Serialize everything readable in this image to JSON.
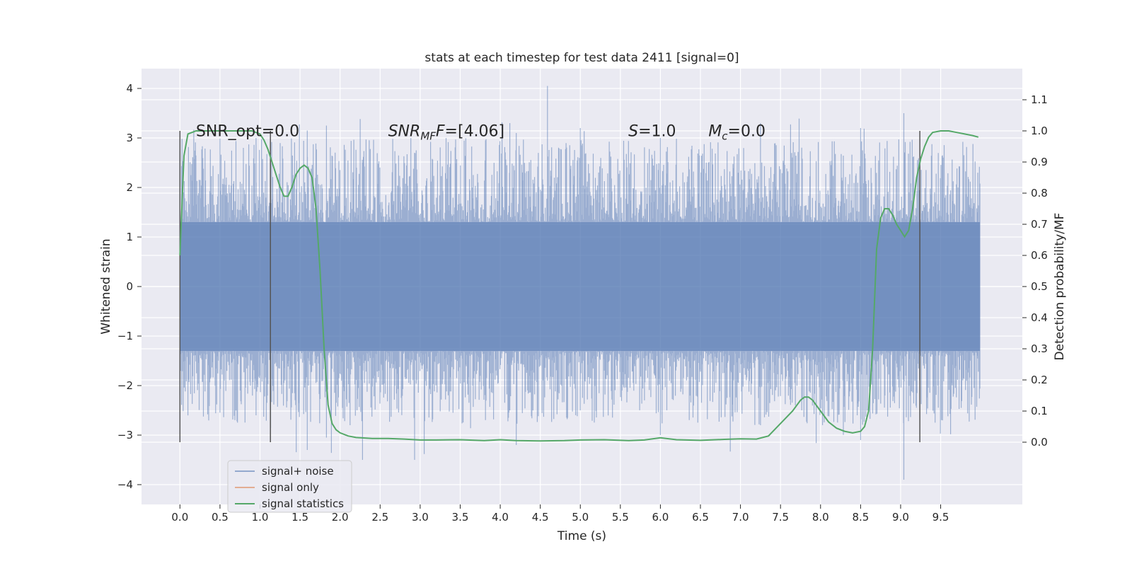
{
  "chart_data": {
    "type": "line",
    "title": "stats at each timestep for test data 2411 [signal=0]",
    "xlabel": "Time (s)",
    "ylabel_left": "Whitened strain",
    "ylabel_right": "Detection probability/MF",
    "xlim": [
      -0.48,
      10.52
    ],
    "ylim_left": [
      -4.4,
      4.4
    ],
    "ylim_right": [
      -0.2,
      1.2
    ],
    "x_ticks": [
      "0.0",
      "0.5",
      "1.0",
      "1.5",
      "2.0",
      "2.5",
      "3.0",
      "3.5",
      "4.0",
      "4.5",
      "5.0",
      "5.5",
      "6.0",
      "6.5",
      "7.0",
      "7.5",
      "8.0",
      "8.5",
      "9.0",
      "9.5"
    ],
    "y_ticks_left": [
      "4",
      "3",
      "2",
      "1",
      "0",
      "−1",
      "−2",
      "−3",
      "−4"
    ],
    "y_ticks_right": [
      "1.1",
      "1.0",
      "0.9",
      "0.8",
      "0.7",
      "0.6",
      "0.5",
      "0.4",
      "0.3",
      "0.2",
      "0.1",
      "0.0"
    ],
    "grid": true,
    "legend_position": "lower-left",
    "background": "#eaeaf2",
    "series": [
      {
        "name": "signal+ noise",
        "color": "#4c72b0",
        "description_values": {
          "x_range": [
            0.0,
            9.99
          ],
          "core_band": [
            -1.3,
            1.3
          ],
          "peaks_up_max": 4.05,
          "peaks_down_min": -3.9
        }
      },
      {
        "name": "signal only",
        "color": "#dd8452",
        "values": []
      },
      {
        "name": "signal statistics",
        "color": "#55a868",
        "x": [
          0.0,
          0.05,
          0.1,
          0.2,
          0.3,
          0.5,
          0.7,
          0.9,
          1.0,
          1.05,
          1.1,
          1.15,
          1.2,
          1.25,
          1.3,
          1.35,
          1.4,
          1.45,
          1.5,
          1.55,
          1.6,
          1.65,
          1.7,
          1.75,
          1.8,
          1.85,
          1.9,
          1.95,
          2.0,
          2.1,
          2.2,
          2.4,
          2.6,
          2.8,
          3.0,
          3.2,
          3.5,
          3.8,
          4.0,
          4.2,
          4.5,
          4.8,
          5.0,
          5.3,
          5.6,
          5.8,
          6.0,
          6.2,
          6.5,
          6.8,
          7.0,
          7.2,
          7.35,
          7.5,
          7.65,
          7.75,
          7.8,
          7.85,
          7.9,
          8.0,
          8.1,
          8.2,
          8.3,
          8.4,
          8.5,
          8.55,
          8.6,
          8.65,
          8.7,
          8.75,
          8.8,
          8.85,
          8.9,
          8.95,
          9.0,
          9.05,
          9.1,
          9.15,
          9.2,
          9.25,
          9.3,
          9.35,
          9.4,
          9.5,
          9.6,
          9.7,
          9.8,
          9.9,
          9.97
        ],
        "values": [
          0.6,
          0.92,
          0.99,
          1.0,
          1.0,
          1.0,
          1.0,
          1.0,
          0.99,
          0.97,
          0.94,
          0.9,
          0.86,
          0.82,
          0.79,
          0.79,
          0.82,
          0.86,
          0.88,
          0.89,
          0.88,
          0.85,
          0.75,
          0.55,
          0.3,
          0.12,
          0.06,
          0.04,
          0.03,
          0.02,
          0.015,
          0.012,
          0.012,
          0.01,
          0.007,
          0.007,
          0.008,
          0.005,
          0.008,
          0.005,
          0.004,
          0.005,
          0.007,
          0.008,
          0.005,
          0.007,
          0.014,
          0.008,
          0.006,
          0.009,
          0.011,
          0.01,
          0.02,
          0.06,
          0.1,
          0.135,
          0.145,
          0.145,
          0.135,
          0.1,
          0.065,
          0.045,
          0.035,
          0.03,
          0.035,
          0.05,
          0.1,
          0.3,
          0.62,
          0.72,
          0.75,
          0.75,
          0.73,
          0.7,
          0.68,
          0.66,
          0.68,
          0.75,
          0.85,
          0.91,
          0.95,
          0.98,
          0.995,
          1.0,
          1.0,
          0.995,
          0.99,
          0.985,
          0.98
        ]
      }
    ],
    "vertical_lines": [
      0.0,
      1.13,
      9.24
    ],
    "annotations": [
      {
        "text": "SNR_opt=0.0",
        "x": 0.2,
        "y": 3.15
      },
      {
        "text_main": "SNR",
        "text_sub": "MF",
        "text_tail": "F=[4.06]",
        "italic_main": true,
        "x": 2.6,
        "y": 3.15
      },
      {
        "text_main": "S",
        "text_tail": "=1.0",
        "italic_main": true,
        "x": 5.6,
        "y": 3.15
      },
      {
        "text_main": "M",
        "text_sub": "c",
        "text_tail": "=0.0",
        "italic_main": true,
        "x": 6.6,
        "y": 3.15
      }
    ]
  }
}
